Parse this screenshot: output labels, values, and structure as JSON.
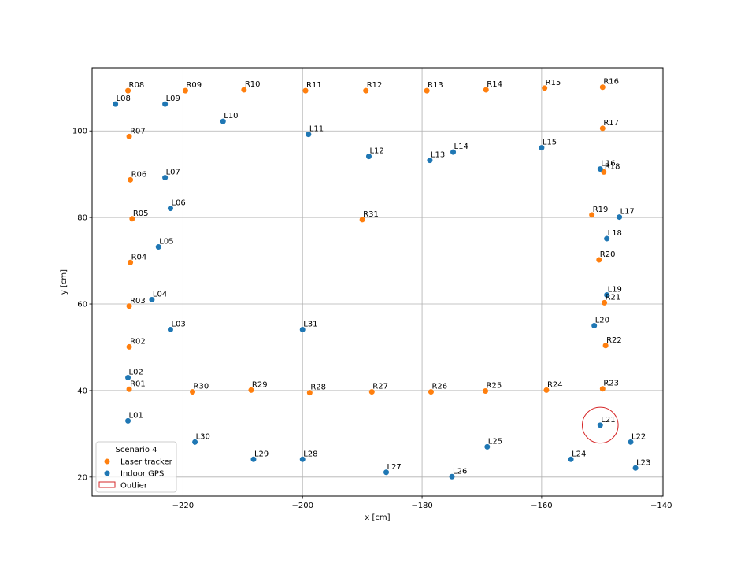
{
  "chart_data": {
    "type": "scatter",
    "xlabel": "x [cm]",
    "ylabel": "y [cm]",
    "xlim": [
      -235.2,
      -139.7
    ],
    "ylim": [
      15.6,
      114.6
    ],
    "xticks": [
      -220,
      -200,
      -180,
      -160,
      -140
    ],
    "yticks": [
      20,
      40,
      60,
      80,
      100
    ],
    "grid": true,
    "legend": {
      "title": "Scenario 4",
      "position": "lower-left",
      "entries": [
        "Laser tracker",
        "Indoor GPS",
        "Outlier"
      ]
    },
    "colors": {
      "laser_tracker": "#ff7f0e",
      "indoor_gps": "#1f77b4",
      "outlier": "#d62728"
    },
    "series": [
      {
        "name": "Laser tracker",
        "points": [
          {
            "label": "R01",
            "x": -229.0,
            "y": 40.3
          },
          {
            "label": "R02",
            "x": -229.0,
            "y": 50.1
          },
          {
            "label": "R03",
            "x": -229.0,
            "y": 59.5
          },
          {
            "label": "R04",
            "x": -228.8,
            "y": 69.6
          },
          {
            "label": "R05",
            "x": -228.5,
            "y": 79.7
          },
          {
            "label": "R06",
            "x": -228.8,
            "y": 88.7
          },
          {
            "label": "R07",
            "x": -229.0,
            "y": 98.7
          },
          {
            "label": "R08",
            "x": -229.2,
            "y": 109.3
          },
          {
            "label": "R09",
            "x": -219.6,
            "y": 109.3
          },
          {
            "label": "R10",
            "x": -209.8,
            "y": 109.5
          },
          {
            "label": "R11",
            "x": -199.5,
            "y": 109.3
          },
          {
            "label": "R12",
            "x": -189.4,
            "y": 109.3
          },
          {
            "label": "R13",
            "x": -179.2,
            "y": 109.3
          },
          {
            "label": "R14",
            "x": -169.3,
            "y": 109.5
          },
          {
            "label": "R15",
            "x": -159.5,
            "y": 109.9
          },
          {
            "label": "R16",
            "x": -149.8,
            "y": 110.1
          },
          {
            "label": "R17",
            "x": -149.8,
            "y": 100.6
          },
          {
            "label": "R18",
            "x": -149.6,
            "y": 90.5
          },
          {
            "label": "R19",
            "x": -151.6,
            "y": 80.6
          },
          {
            "label": "R20",
            "x": -150.4,
            "y": 70.2
          },
          {
            "label": "R21",
            "x": -149.5,
            "y": 60.3
          },
          {
            "label": "R22",
            "x": -149.3,
            "y": 50.4
          },
          {
            "label": "R23",
            "x": -149.8,
            "y": 40.4
          },
          {
            "label": "R24",
            "x": -159.2,
            "y": 40.1
          },
          {
            "label": "R25",
            "x": -169.4,
            "y": 39.9
          },
          {
            "label": "R26",
            "x": -178.5,
            "y": 39.7
          },
          {
            "label": "R27",
            "x": -188.4,
            "y": 39.7
          },
          {
            "label": "R28",
            "x": -198.8,
            "y": 39.5
          },
          {
            "label": "R29",
            "x": -208.6,
            "y": 40.1
          },
          {
            "label": "R30",
            "x": -218.4,
            "y": 39.7
          },
          {
            "label": "R31",
            "x": -190.0,
            "y": 79.5
          }
        ]
      },
      {
        "name": "Indoor GPS",
        "points": [
          {
            "label": "L01",
            "x": -229.2,
            "y": 33.0
          },
          {
            "label": "L02",
            "x": -229.2,
            "y": 43.0
          },
          {
            "label": "L03",
            "x": -222.1,
            "y": 54.1
          },
          {
            "label": "L04",
            "x": -225.2,
            "y": 61.0
          },
          {
            "label": "L05",
            "x": -224.1,
            "y": 73.2
          },
          {
            "label": "L06",
            "x": -222.1,
            "y": 82.1
          },
          {
            "label": "L07",
            "x": -223.0,
            "y": 89.2
          },
          {
            "label": "L08",
            "x": -231.3,
            "y": 106.2
          },
          {
            "label": "L09",
            "x": -223.0,
            "y": 106.2
          },
          {
            "label": "L10",
            "x": -213.3,
            "y": 102.2
          },
          {
            "label": "L11",
            "x": -199.0,
            "y": 99.2
          },
          {
            "label": "L12",
            "x": -188.9,
            "y": 94.1
          },
          {
            "label": "L13",
            "x": -178.7,
            "y": 93.2
          },
          {
            "label": "L14",
            "x": -174.8,
            "y": 95.1
          },
          {
            "label": "L15",
            "x": -160.0,
            "y": 96.1
          },
          {
            "label": "L16",
            "x": -150.2,
            "y": 91.2
          },
          {
            "label": "L17",
            "x": -147.0,
            "y": 80.1
          },
          {
            "label": "L18",
            "x": -149.1,
            "y": 75.1
          },
          {
            "label": "L19",
            "x": -149.1,
            "y": 62.1
          },
          {
            "label": "L20",
            "x": -151.2,
            "y": 55.0
          },
          {
            "label": "L21",
            "x": -150.2,
            "y": 32.0
          },
          {
            "label": "L22",
            "x": -145.1,
            "y": 28.1
          },
          {
            "label": "L23",
            "x": -144.3,
            "y": 22.1
          },
          {
            "label": "L24",
            "x": -155.1,
            "y": 24.1
          },
          {
            "label": "L25",
            "x": -169.1,
            "y": 27.0
          },
          {
            "label": "L26",
            "x": -175.0,
            "y": 20.1
          },
          {
            "label": "L27",
            "x": -186.0,
            "y": 21.1
          },
          {
            "label": "L28",
            "x": -200.0,
            "y": 24.1
          },
          {
            "label": "L29",
            "x": -208.2,
            "y": 24.1
          },
          {
            "label": "L30",
            "x": -218.0,
            "y": 28.1
          },
          {
            "label": "L31",
            "x": -200.0,
            "y": 54.1
          }
        ]
      }
    ],
    "outliers": [
      {
        "label": "L21",
        "x": -150.2,
        "y": 32.0,
        "radius": 3.0
      }
    ]
  }
}
